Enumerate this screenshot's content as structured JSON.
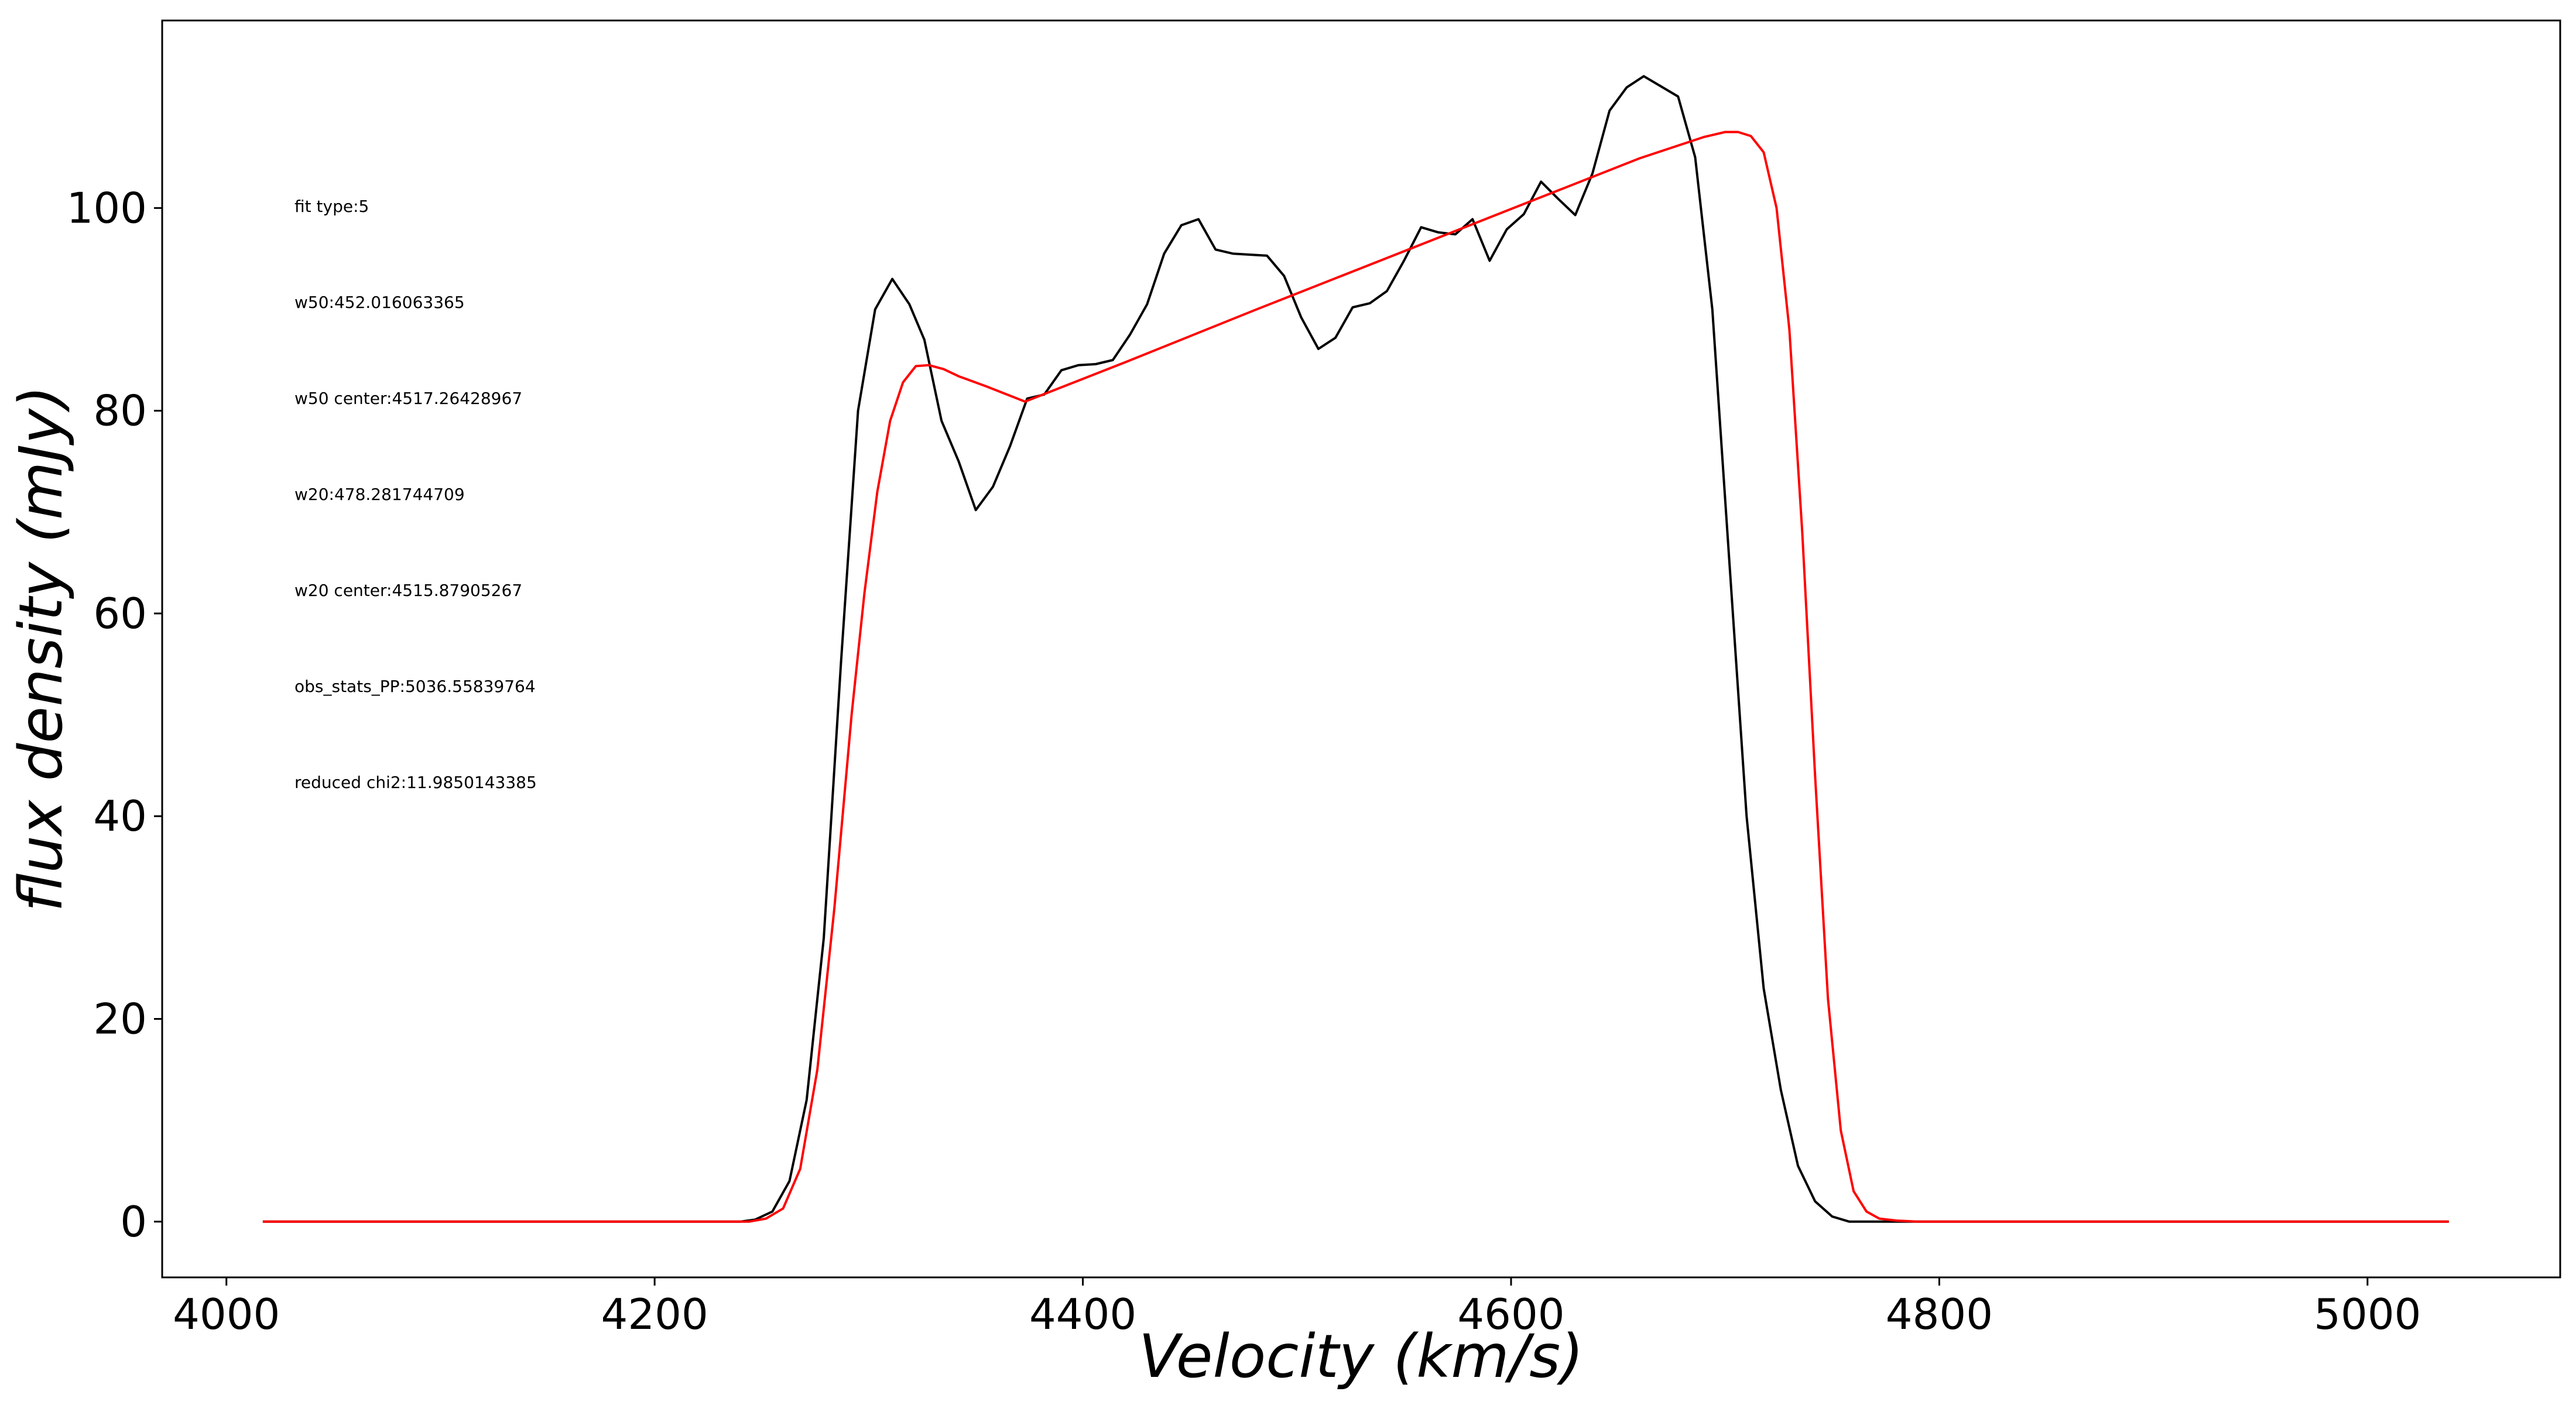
{
  "chart_data": {
    "type": "line",
    "title": "",
    "xlabel": "Velocity (km/s)",
    "ylabel": "flux density (mJy)",
    "xlim": [
      3970,
      5090
    ],
    "ylim": [
      -5.5,
      118.5
    ],
    "xticks": [
      4000,
      4200,
      4400,
      4600,
      4800,
      5000
    ],
    "yticks": [
      0,
      20,
      40,
      60,
      80,
      100
    ],
    "grid": false,
    "legend": "none",
    "annotations": [
      "fit type:5",
      "w50:452.016063365",
      "w50 center:4517.26428967",
      "w20:478.281744709",
      "w20 center:4515.87905267",
      "obs_stats_PP:5036.55839764",
      "reduced chi2:11.9850143385"
    ],
    "annotation_position": "upper-left",
    "series": [
      {
        "color": "#000000",
        "x": [
          4017,
          4240,
          4247,
          4255,
          4263,
          4271,
          4279,
          4287,
          4295,
          4303,
          4311,
          4319,
          4326,
          4334,
          4342,
          4350,
          4358,
          4366,
          4374,
          4382,
          4390,
          4398,
          4406,
          4414,
          4422,
          4430,
          4438,
          4446,
          4454,
          4462,
          4470,
          4478,
          4486,
          4494,
          4502,
          4510,
          4518,
          4526,
          4534,
          4542,
          4550,
          4558,
          4566,
          4574,
          4582,
          4590,
          4598,
          4606,
          4614,
          4622,
          4630,
          4638,
          4646,
          4654,
          4662,
          4670,
          4678,
          4686,
          4694,
          4702,
          4710,
          4718,
          4726,
          4734,
          4742,
          4750,
          4758,
          4766,
          4774,
          4782,
          4790,
          4798,
          4806,
          5038
        ],
        "y": [
          0,
          0,
          0.2,
          1.0,
          4.0,
          12,
          28,
          55,
          80,
          90,
          93,
          90.5,
          87,
          79,
          75,
          70.2,
          72.5,
          76.5,
          81.2,
          81.6,
          84,
          84.5,
          84.6,
          85,
          87.5,
          90.5,
          95.5,
          98.3,
          98.9,
          95.9,
          95.5,
          95.4,
          95.3,
          93.3,
          89.2,
          86.1,
          87.2,
          90.2,
          90.6,
          91.8,
          94.8,
          98.1,
          97.6,
          97.4,
          98.9,
          94.8,
          97.9,
          99.4,
          102.6,
          100.9,
          99.3,
          103.4,
          109.6,
          111.9,
          113,
          112,
          111,
          105,
          90,
          65,
          40,
          23,
          13,
          5.5,
          2,
          0.5,
          0,
          0,
          0,
          0,
          0,
          0,
          0,
          0
        ]
      },
      {
        "color": "#ff0000",
        "x": [
          4017,
          4244,
          4252,
          4260,
          4268,
          4276,
          4284,
          4292,
          4298,
          4304,
          4310,
          4316,
          4322,
          4328,
          4335,
          4342,
          4355,
          4373,
          4420,
          4480,
          4540,
          4600,
          4660,
          4690,
          4700,
          4706,
          4712,
          4718,
          4724,
          4730,
          4736,
          4742,
          4748,
          4754,
          4760,
          4766,
          4772,
          4780,
          4790,
          4800,
          5038
        ],
        "y": [
          0,
          0,
          0.3,
          1.3,
          5.2,
          15,
          31,
          50,
          62,
          72,
          79,
          82.8,
          84.4,
          84.5,
          84.1,
          83.4,
          82.4,
          80.9,
          84.8,
          89.9,
          94.9,
          99.9,
          104.9,
          107,
          107.5,
          107.5,
          107.1,
          105.5,
          100,
          88,
          68,
          44,
          22,
          9,
          3,
          1,
          0.3,
          0.1,
          0,
          0,
          0
        ]
      }
    ]
  }
}
